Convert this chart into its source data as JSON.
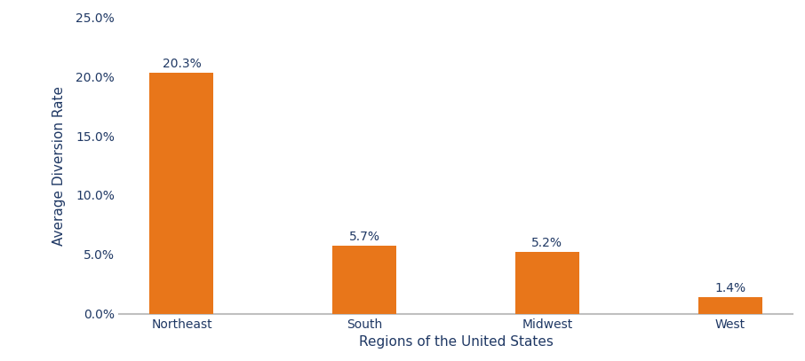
{
  "categories": [
    "Northeast",
    "South",
    "Midwest",
    "West"
  ],
  "values": [
    20.3,
    5.7,
    5.2,
    1.4
  ],
  "bar_color": "#E8761A",
  "xlabel": "Regions of the United States",
  "ylabel": "Average Diversion Rate",
  "ylim": [
    0,
    25
  ],
  "yticks": [
    0,
    5,
    10,
    15,
    20,
    25
  ],
  "ytick_labels": [
    "0.0%",
    "5.0%",
    "10.0%",
    "15.0%",
    "20.0%",
    "25.0%"
  ],
  "bar_labels": [
    "20.3%",
    "5.7%",
    "5.2%",
    "1.4%"
  ],
  "background_color": "#ffffff",
  "label_fontsize": 10,
  "axis_label_fontsize": 11,
  "tick_fontsize": 10,
  "label_color": "#1F3864",
  "spine_color": "#bfbfbf",
  "bar_width": 0.35
}
